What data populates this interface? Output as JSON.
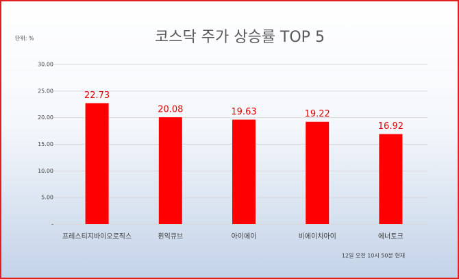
{
  "chart_data": {
    "type": "bar",
    "title": "코스닥 주가 상승률 TOP 5",
    "unit_label": "단위: %",
    "note": "12일 오전 10시 50분 현재",
    "categories": [
      "프레스티지바이오로직스",
      "휜익큐브",
      "아이에이",
      "비에이치아이",
      "에너토크"
    ],
    "values": [
      22.73,
      20.08,
      19.63,
      19.22,
      16.92
    ],
    "color": "#ff0000",
    "label_color": "#e00000",
    "ylim": [
      0,
      30
    ],
    "yticks": [
      {
        "value": 0,
        "label": "-"
      },
      {
        "value": 5,
        "label": "5.00"
      },
      {
        "value": 10,
        "label": "10.00"
      },
      {
        "value": 15,
        "label": "15.00"
      },
      {
        "value": 20,
        "label": "20.00"
      },
      {
        "value": 25,
        "label": "25.00"
      },
      {
        "value": 30,
        "label": "30.00"
      }
    ],
    "grid": true
  }
}
